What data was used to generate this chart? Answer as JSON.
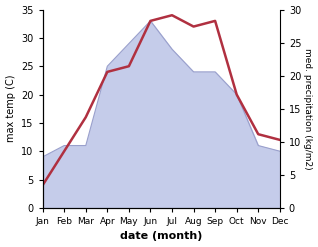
{
  "months": [
    "Jan",
    "Feb",
    "Mar",
    "Apr",
    "May",
    "Jun",
    "Jul",
    "Aug",
    "Sep",
    "Oct",
    "Nov",
    "Dec"
  ],
  "temperature": [
    4,
    10,
    16,
    24,
    25,
    33,
    34,
    32,
    33,
    20,
    13,
    12
  ],
  "precipitation": [
    9,
    11,
    11,
    25,
    29,
    33,
    28,
    24,
    24,
    20,
    11,
    10
  ],
  "temp_color": "#b03040",
  "precip_fill_color": "#c5ccea",
  "precip_edge_color": "#9aa0cc",
  "temp_ylim": [
    0,
    35
  ],
  "temp_yticks": [
    0,
    5,
    10,
    15,
    20,
    25,
    30,
    35
  ],
  "precip_ylim": [
    0,
    30
  ],
  "precip_yticks": [
    0,
    5,
    10,
    15,
    20,
    25,
    30
  ],
  "xlabel": "date (month)",
  "ylabel_left": "max temp (C)",
  "ylabel_right": "med. precipitation (kg/m2)",
  "bg_color": "#ffffff"
}
